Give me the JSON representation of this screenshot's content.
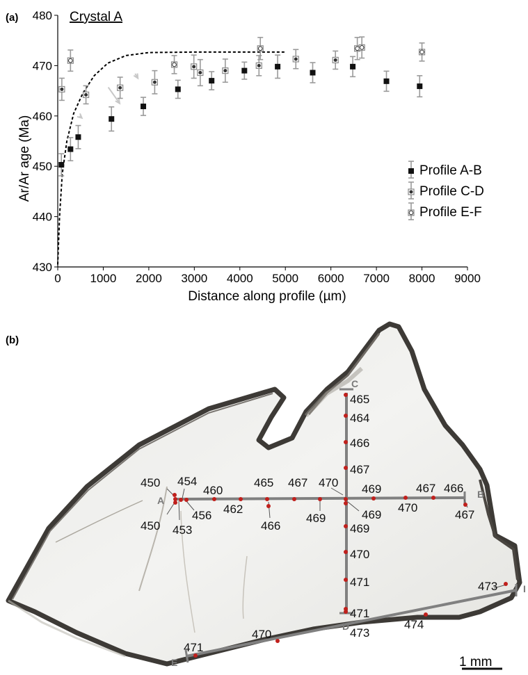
{
  "panel_a": {
    "label": "(a)",
    "title": "Crystal A",
    "annotation_note": ""
  },
  "panel_b": {
    "label": "(b)",
    "scale_label": "1 mm",
    "endpoints": [
      "A",
      "B",
      "C",
      "D",
      "E",
      "I"
    ],
    "ages": [
      {
        "text": "465",
        "anchor": "left"
      },
      {
        "text": "464",
        "anchor": "left"
      },
      {
        "text": "466",
        "anchor": "left"
      },
      {
        "text": "467",
        "anchor": "left"
      },
      {
        "text": "450",
        "anchor": "left"
      },
      {
        "text": "454",
        "anchor": "left"
      },
      {
        "text": "460",
        "anchor": "left"
      },
      {
        "text": "465",
        "anchor": "left"
      },
      {
        "text": "467",
        "anchor": "left"
      },
      {
        "text": "470",
        "anchor": "left"
      },
      {
        "text": "469",
        "anchor": "left"
      },
      {
        "text": "467",
        "anchor": "left"
      },
      {
        "text": "466",
        "anchor": "left"
      },
      {
        "text": "450",
        "anchor": "left"
      },
      {
        "text": "456",
        "anchor": "left"
      },
      {
        "text": "453",
        "anchor": "left"
      },
      {
        "text": "462",
        "anchor": "left"
      },
      {
        "text": "466",
        "anchor": "left"
      },
      {
        "text": "469",
        "anchor": "left"
      },
      {
        "text": "469",
        "anchor": "left"
      },
      {
        "text": "470",
        "anchor": "left"
      },
      {
        "text": "467",
        "anchor": "left"
      },
      {
        "text": "469",
        "anchor": "left"
      },
      {
        "text": "470",
        "anchor": "left"
      },
      {
        "text": "471",
        "anchor": "left"
      },
      {
        "text": "473",
        "anchor": "left"
      },
      {
        "text": "471",
        "anchor": "left"
      },
      {
        "text": "474",
        "anchor": "left"
      },
      {
        "text": "473",
        "anchor": "left"
      },
      {
        "text": "470",
        "anchor": "left"
      },
      {
        "text": "471",
        "anchor": "left"
      }
    ]
  },
  "chart_data": {
    "type": "scatter",
    "title": "Crystal A",
    "xlabel": "Distance along profile (µm)",
    "ylabel": "Ar/Ar age (Ma)",
    "xlim": [
      0,
      9000
    ],
    "ylim": [
      430,
      480
    ],
    "x_ticks": [
      0,
      1000,
      2000,
      3000,
      4000,
      5000,
      6000,
      7000,
      8000,
      9000
    ],
    "y_ticks": [
      430,
      440,
      450,
      460,
      470,
      480
    ],
    "legend_position": "right",
    "series": [
      {
        "name": "Profile A-B",
        "marker": "filled",
        "color": "#111111",
        "points": [
          {
            "x": 80,
            "y": 450.3,
            "err": 2.2
          },
          {
            "x": 280,
            "y": 453.4,
            "err": 2.3
          },
          {
            "x": 450,
            "y": 455.8,
            "err": 2.3
          },
          {
            "x": 1180,
            "y": 459.4,
            "err": 2.4
          },
          {
            "x": 1880,
            "y": 461.9,
            "err": 1.8
          },
          {
            "x": 2640,
            "y": 465.3,
            "err": 1.8
          },
          {
            "x": 3380,
            "y": 467.0,
            "err": 1.8
          },
          {
            "x": 4100,
            "y": 469.0,
            "err": 1.7
          },
          {
            "x": 4830,
            "y": 469.8,
            "err": 2.3
          },
          {
            "x": 5600,
            "y": 468.6,
            "err": 2.0
          },
          {
            "x": 6480,
            "y": 469.8,
            "err": 2.0
          },
          {
            "x": 7220,
            "y": 466.9,
            "err": 2.0
          },
          {
            "x": 7950,
            "y": 465.9,
            "err": 2.1
          }
        ]
      },
      {
        "name": "Profile C-D",
        "marker": "grey",
        "color": "#8a8a8a",
        "points": [
          {
            "x": 90,
            "y": 465.3,
            "err": 2.2
          },
          {
            "x": 620,
            "y": 464.2,
            "err": 1.8
          },
          {
            "x": 1370,
            "y": 465.6,
            "err": 2.1
          },
          {
            "x": 2130,
            "y": 466.7,
            "err": 2.3
          },
          {
            "x": 2990,
            "y": 469.8,
            "err": 2.3
          },
          {
            "x": 3130,
            "y": 468.6,
            "err": 2.6
          },
          {
            "x": 3680,
            "y": 469.0,
            "err": 2.3
          },
          {
            "x": 4420,
            "y": 470.0,
            "err": 2.0
          },
          {
            "x": 5230,
            "y": 471.3,
            "err": 1.9
          },
          {
            "x": 6100,
            "y": 471.1,
            "err": 1.8
          }
        ]
      },
      {
        "name": "Profile E-F",
        "marker": "open",
        "color": "#666666",
        "points": [
          {
            "x": 280,
            "y": 471.0,
            "err": 2.1
          },
          {
            "x": 2560,
            "y": 470.2,
            "err": 1.8
          },
          {
            "x": 4450,
            "y": 473.4,
            "err": 2.2
          },
          {
            "x": 6580,
            "y": 473.4,
            "err": 2.2
          },
          {
            "x": 6680,
            "y": 473.6,
            "err": 2.1
          },
          {
            "x": 8000,
            "y": 472.7,
            "err": 1.8
          }
        ]
      }
    ],
    "model_curve": {
      "style": "dashed",
      "points": [
        [
          0,
          430.5
        ],
        [
          40,
          440
        ],
        [
          100,
          448.5
        ],
        [
          200,
          455
        ],
        [
          350,
          460.5
        ],
        [
          550,
          464.5
        ],
        [
          800,
          468
        ],
        [
          1100,
          470.5
        ],
        [
          1500,
          472
        ],
        [
          2000,
          472.6
        ],
        [
          3000,
          472.7
        ],
        [
          5000,
          472.7
        ]
      ]
    },
    "arrows": [
      {
        "from": [
          1110,
          465.7
        ],
        "to": [
          1360,
          462.5
        ],
        "color": "#c8c8c8"
      },
      {
        "from": [
          1700,
          468.4
        ],
        "to": [
          1760,
          467.5
        ],
        "color": "#c8c8c8"
      },
      {
        "from": [
          480,
          460.0
        ],
        "to": [
          530,
          459.6
        ],
        "color": "#c8c8c8"
      }
    ]
  }
}
